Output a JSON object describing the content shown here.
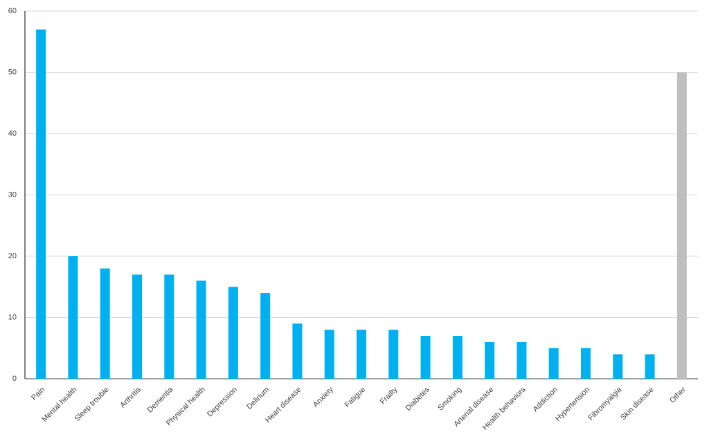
{
  "chart_data": {
    "type": "bar",
    "categories": [
      "Pain",
      "Mental health",
      "Sleep trouble",
      "Arthritis",
      "Dementia",
      "Physical health",
      "Depression",
      "Delirium",
      "Heart disease",
      "Anxiety",
      "Fatigue",
      "Frailty",
      "Diabetes",
      "Smoking",
      "Arterial disease",
      "Health behaviors",
      "Addiction",
      "Hypertension",
      "Fibromyalgia",
      "Skin disease",
      "Other"
    ],
    "values": [
      57,
      20,
      18,
      17,
      17,
      16,
      15,
      14,
      9,
      8,
      8,
      8,
      7,
      7,
      6,
      6,
      5,
      5,
      4,
      4,
      50
    ],
    "colors": [
      "#00b0f0",
      "#00b0f0",
      "#00b0f0",
      "#00b0f0",
      "#00b0f0",
      "#00b0f0",
      "#00b0f0",
      "#00b0f0",
      "#00b0f0",
      "#00b0f0",
      "#00b0f0",
      "#00b0f0",
      "#00b0f0",
      "#00b0f0",
      "#00b0f0",
      "#00b0f0",
      "#00b0f0",
      "#00b0f0",
      "#00b0f0",
      "#00b0f0",
      "#bfbfbf"
    ],
    "ylim": [
      0,
      60
    ],
    "yticks": [
      0,
      10,
      20,
      30,
      40,
      50,
      60
    ],
    "grid": true
  }
}
